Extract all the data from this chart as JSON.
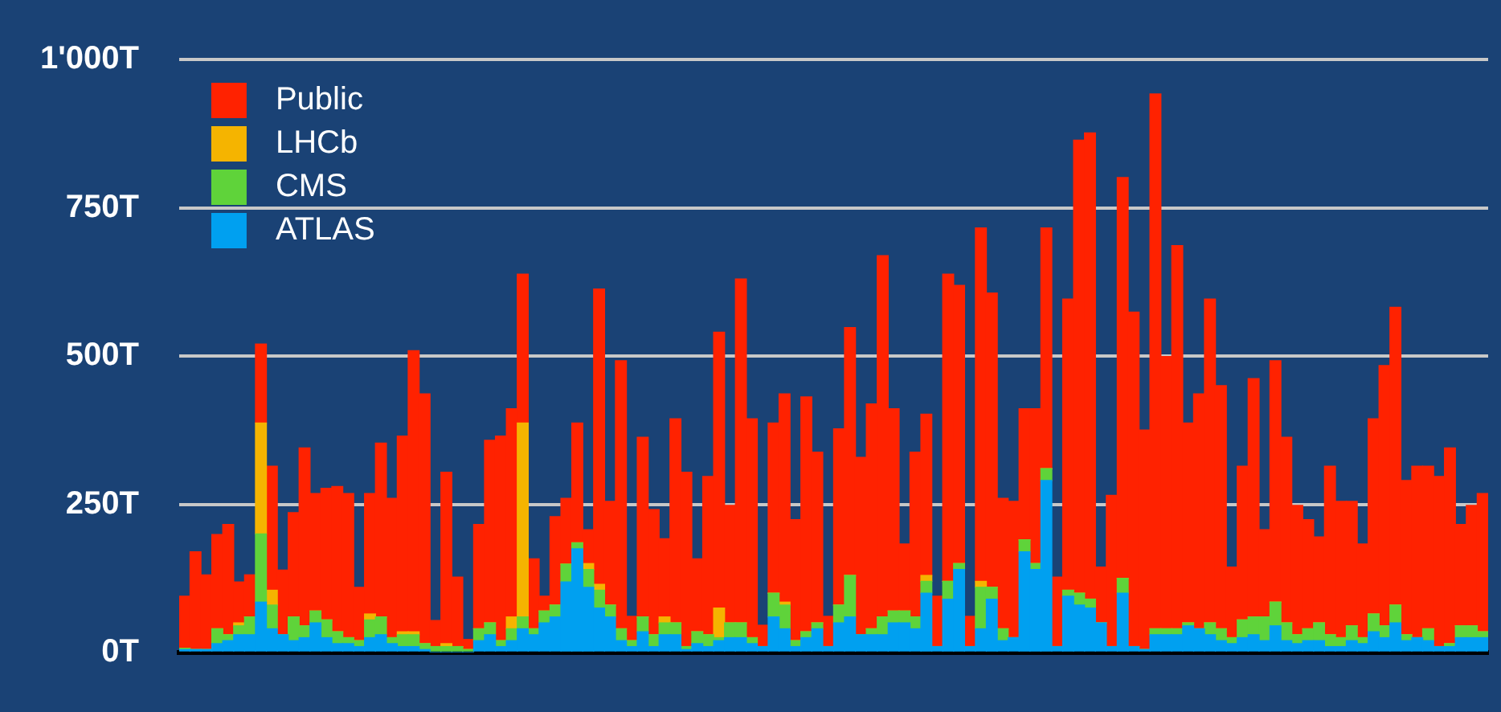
{
  "chart_data": {
    "type": "bar",
    "stacked": true,
    "grid": "y",
    "legend": "top left",
    "categories": [
      null,
      null,
      null,
      null,
      null,
      null,
      null,
      null,
      null,
      null,
      null,
      null,
      null,
      null,
      null,
      null,
      null,
      null,
      null,
      null,
      null,
      null,
      null,
      null,
      null,
      null,
      null,
      null,
      null,
      null,
      null,
      null,
      null,
      null,
      null,
      null,
      null,
      null,
      null,
      null,
      null,
      null,
      null,
      null,
      null,
      null,
      null,
      null,
      null,
      null,
      null,
      null,
      null,
      null,
      null,
      null,
      null,
      null,
      null,
      null,
      null,
      null,
      null,
      null,
      null,
      null,
      null,
      null,
      null,
      null,
      null,
      null,
      null,
      null,
      null,
      null,
      null,
      null,
      null,
      null,
      null,
      null,
      null,
      null,
      null,
      null,
      null,
      null,
      null,
      null,
      null,
      null,
      null,
      null,
      null,
      null,
      null,
      null,
      null,
      null,
      null,
      null,
      null,
      null,
      null,
      null,
      null,
      null,
      null,
      null,
      null,
      null,
      null,
      null,
      null,
      null,
      null,
      null,
      null,
      null
    ],
    "ylim": [
      0,
      1000
    ],
    "yticks": [
      {
        "value": 0,
        "label": "0T"
      },
      {
        "value": 250,
        "label": "250T"
      },
      {
        "value": 500,
        "label": "500T"
      },
      {
        "value": 750,
        "label": "750T"
      },
      {
        "value": 1000,
        "label": "1'000T"
      }
    ],
    "series": [
      {
        "name": "ATLAS",
        "color": "#00a0f0",
        "values": [
          5,
          5,
          5,
          15,
          20,
          30,
          30,
          85,
          40,
          30,
          20,
          25,
          50,
          25,
          15,
          15,
          10,
          25,
          30,
          15,
          10,
          10,
          5,
          0,
          0,
          0,
          0,
          20,
          30,
          10,
          20,
          40,
          30,
          50,
          60,
          119,
          175,
          110,
          75,
          60,
          20,
          10,
          35,
          10,
          30,
          30,
          5,
          15,
          10,
          20,
          25,
          25,
          15,
          10,
          60,
          40,
          10,
          25,
          40,
          10,
          50,
          60,
          30,
          30,
          30,
          50,
          50,
          40,
          100,
          10,
          90,
          140,
          10,
          40,
          90,
          20,
          25,
          170,
          140,
          290,
          10,
          95,
          80,
          75,
          50,
          10,
          100,
          10,
          5,
          30,
          30,
          30,
          45,
          40,
          30,
          20,
          15,
          25,
          30,
          20,
          45,
          20,
          15,
          20,
          20,
          10,
          10,
          20,
          15,
          35,
          25,
          50,
          20,
          25,
          20,
          10,
          10,
          25,
          25,
          25
        ]
      },
      {
        "name": "CMS",
        "color": "#5fd33a",
        "values": [
          2,
          0,
          0,
          25,
          10,
          15,
          30,
          115,
          40,
          0,
          40,
          20,
          20,
          30,
          20,
          10,
          10,
          30,
          30,
          10,
          20,
          20,
          10,
          10,
          10,
          10,
          5,
          20,
          20,
          10,
          20,
          20,
          10,
          20,
          20,
          30,
          10,
          30,
          30,
          20,
          20,
          10,
          25,
          20,
          20,
          20,
          5,
          20,
          20,
          5,
          25,
          25,
          10,
          0,
          40,
          40,
          10,
          10,
          10,
          0,
          30,
          70,
          0,
          10,
          30,
          20,
          20,
          20,
          20,
          0,
          30,
          10,
          0,
          70,
          20,
          20,
          0,
          20,
          10,
          20,
          0,
          10,
          20,
          15,
          0,
          0,
          25,
          0,
          0,
          10,
          10,
          10,
          5,
          0,
          20,
          20,
          10,
          30,
          30,
          40,
          40,
          30,
          15,
          20,
          30,
          20,
          15,
          25,
          10,
          30,
          20,
          30,
          10,
          0,
          20,
          0,
          5,
          20,
          20,
          10
        ]
      },
      {
        "name": "LHCb",
        "color": "#f5b400",
        "values": [
          0,
          0,
          0,
          0,
          0,
          5,
          0,
          187,
          25,
          0,
          0,
          0,
          0,
          0,
          0,
          0,
          0,
          10,
          0,
          0,
          5,
          5,
          0,
          0,
          5,
          0,
          0,
          0,
          0,
          0,
          20,
          327,
          0,
          0,
          0,
          0,
          0,
          10,
          10,
          0,
          0,
          0,
          0,
          0,
          10,
          0,
          0,
          0,
          0,
          50,
          0,
          0,
          0,
          0,
          0,
          5,
          0,
          0,
          0,
          0,
          0,
          0,
          0,
          0,
          0,
          0,
          0,
          0,
          10,
          0,
          0,
          0,
          0,
          10,
          0,
          0,
          0,
          0,
          0,
          0,
          0,
          0,
          0,
          0,
          0,
          0,
          0,
          0,
          0,
          0,
          0,
          0,
          0,
          0,
          0,
          0,
          0,
          0,
          0,
          0,
          0,
          0,
          0,
          0,
          0,
          0,
          0,
          0,
          0,
          0,
          0,
          0,
          0,
          0,
          0,
          0,
          0,
          0,
          0,
          0
        ]
      },
      {
        "name": "Public",
        "color": "#ff2200",
        "values": [
          88,
          165,
          126,
          159,
          186,
          69,
          71,
          133,
          209,
          109,
          176,
          300,
          198,
          222,
          245,
          243,
          90,
          203,
          293,
          235,
          330,
          474,
          421,
          44,
          289,
          117,
          17,
          176,
          308,
          345,
          351,
          251,
          118,
          25,
          149,
          111,
          202,
          57,
          498,
          175,
          452,
          41,
          303,
          211,
          132,
          344,
          294,
          123,
          267,
          465,
          198,
          580,
          369,
          36,
          287,
          351,
          204,
          396,
          288,
          51,
          297,
          418,
          299,
          379,
          609,
          341,
          113,
          278,
          272,
          85,
          518,
          469,
          51,
          596,
          496,
          220,
          230,
          221,
          261,
          406,
          117,
          491,
          764,
          786,
          94,
          255,
          676,
          564,
          370,
          902,
          459,
          646,
          337,
          396,
          546,
          410,
          119,
          259,
          402,
          147,
          407,
          313,
          218,
          184,
          145,
          284,
          230,
          210,
          158,
          329,
          439,
          502,
          260,
          289,
          274,
          287,
          330,
          171,
          203,
          233
        ]
      }
    ]
  }
}
